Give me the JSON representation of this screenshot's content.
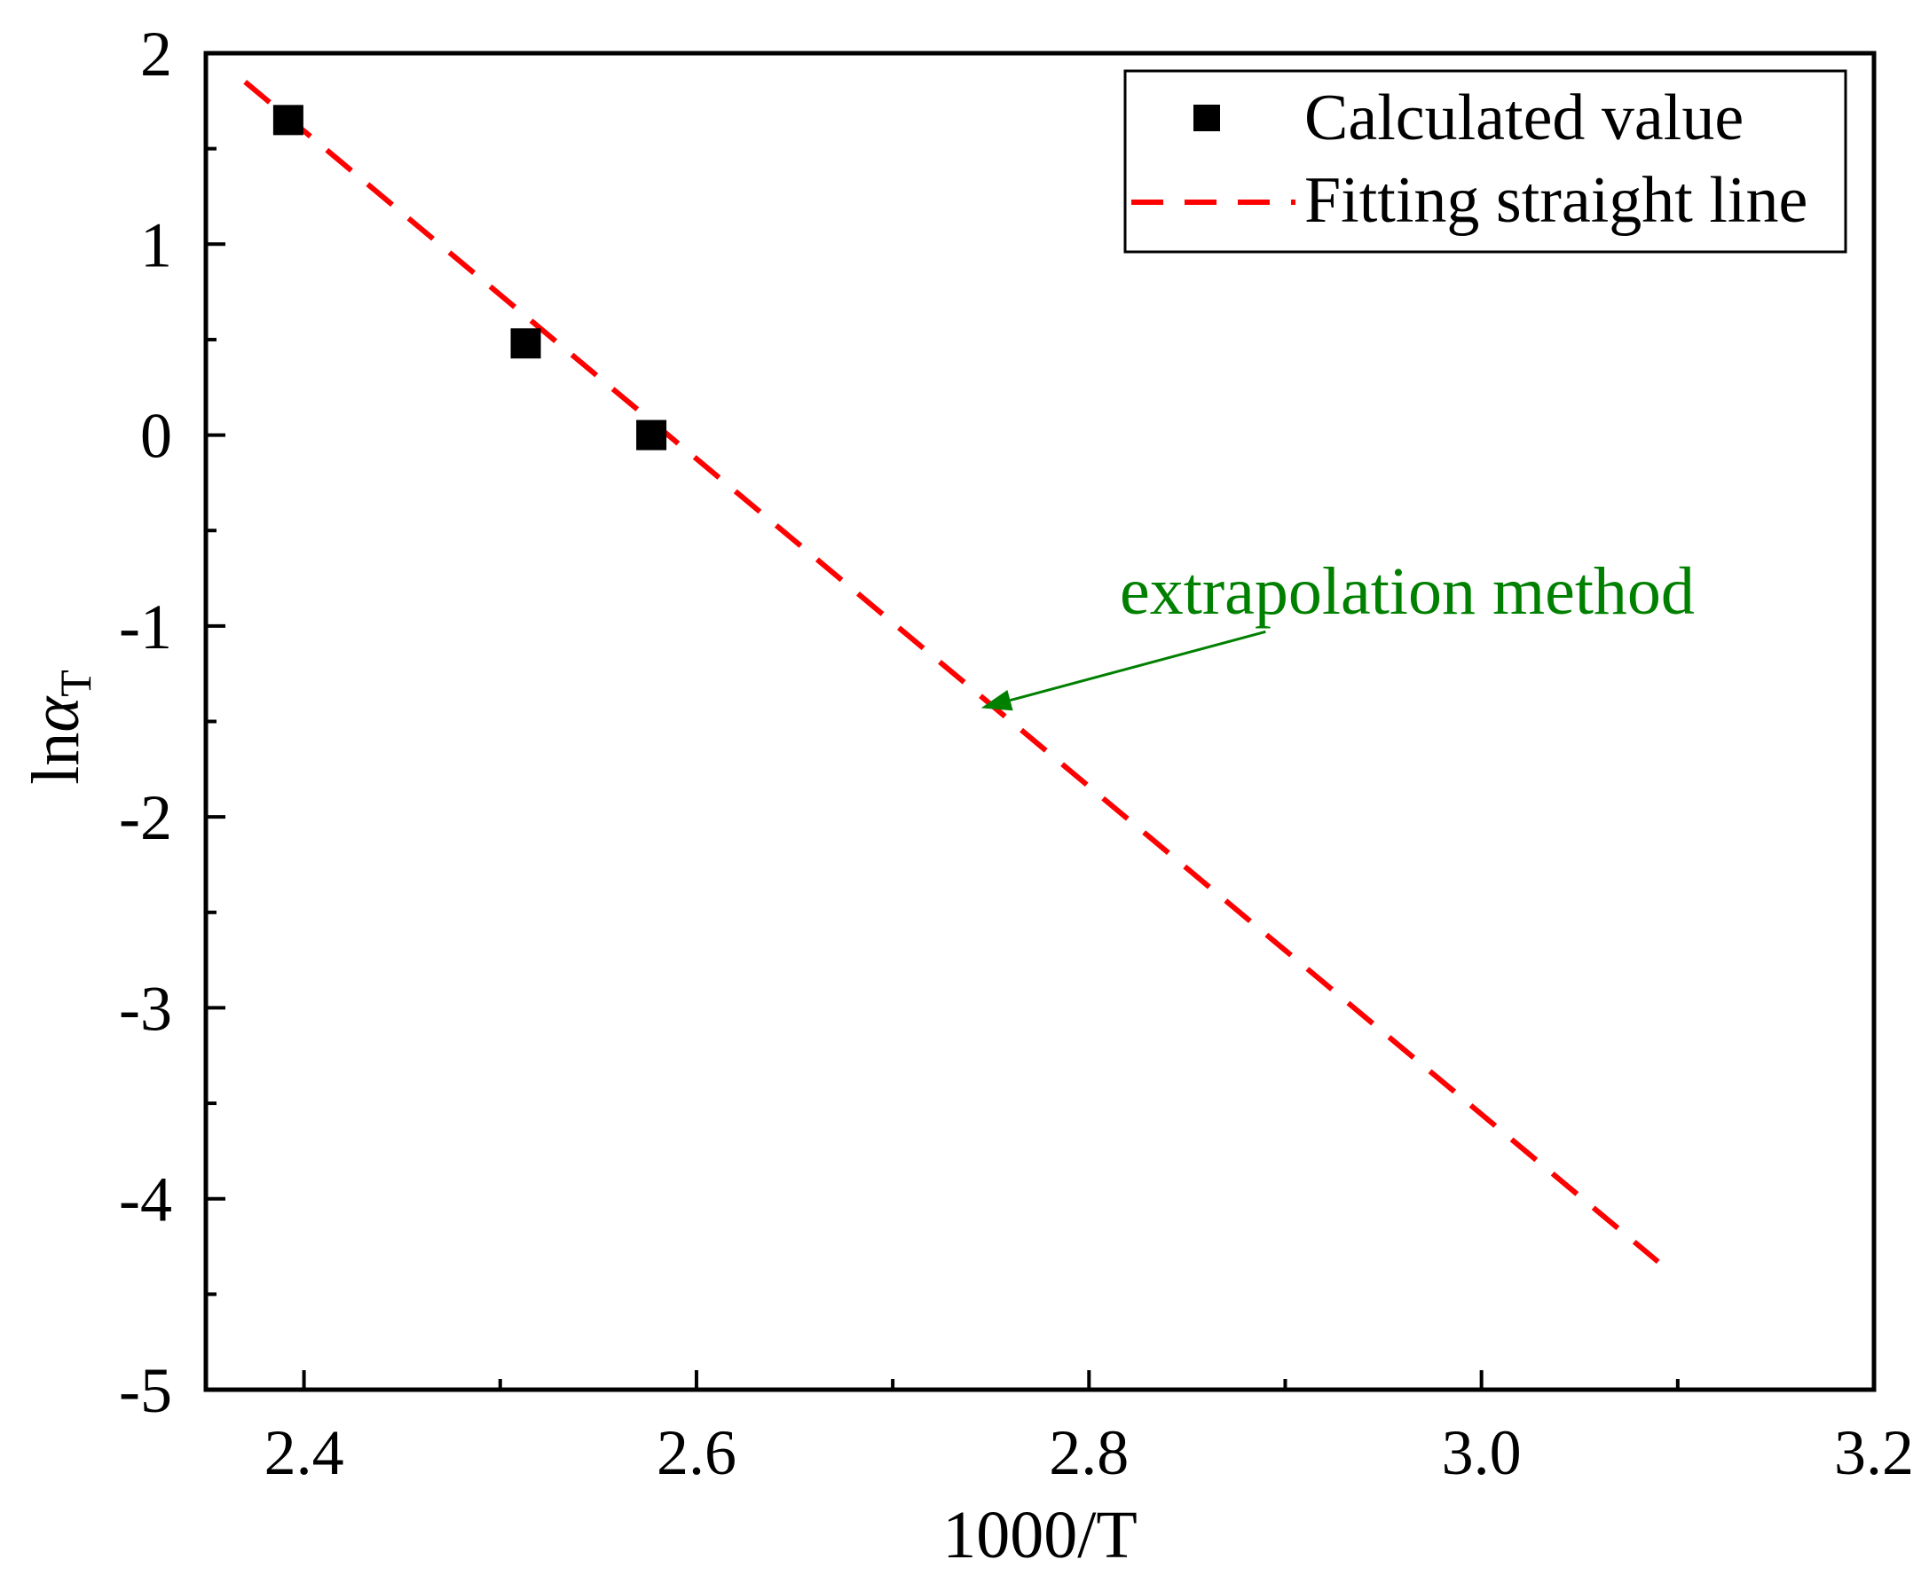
{
  "chart_data": {
    "type": "scatter",
    "xlabel": "1000/T",
    "ylabel_base": "ln",
    "ylabel_symbol": "α",
    "ylabel_subscript": "T",
    "xlim": [
      2.35,
      3.2
    ],
    "ylim": [
      -5,
      2
    ],
    "xticks": [
      2.4,
      2.6,
      2.8,
      3.0,
      3.2
    ],
    "xtick_labels": [
      "2.4",
      "2.6",
      "2.8",
      "3.0",
      "3.2"
    ],
    "xminor": [
      2.5,
      2.7,
      2.9,
      3.1
    ],
    "yticks": [
      2,
      1,
      0,
      -1,
      -2,
      -3,
      -4,
      -5
    ],
    "ytick_labels": [
      "2",
      "1",
      "0",
      "-1",
      "-2",
      "-3",
      "-4",
      "-5"
    ],
    "yminor": [
      1.5,
      0.5,
      -0.5,
      -1.5,
      -2.5,
      -3.5,
      -4.5
    ],
    "series": [
      {
        "name": "Calculated value",
        "kind": "scatter",
        "marker": "square",
        "color": "#000000",
        "x": [
          2.392,
          2.513,
          2.577
        ],
        "y": [
          1.65,
          0.48,
          0.0
        ]
      },
      {
        "name": "Fitting straight line",
        "kind": "line",
        "style": "dashed",
        "color": "#ff0000",
        "x": [
          2.37,
          3.09
        ],
        "y": [
          1.85,
          -4.33
        ]
      }
    ],
    "legend": {
      "position": "top-right",
      "items": [
        "Calculated value",
        "Fitting straight line"
      ]
    },
    "annotation": {
      "text": "extrapolation method",
      "color": "#008000",
      "arrow_from": [
        2.89,
        -1.03
      ],
      "arrow_to": [
        2.745,
        -1.43
      ]
    }
  }
}
